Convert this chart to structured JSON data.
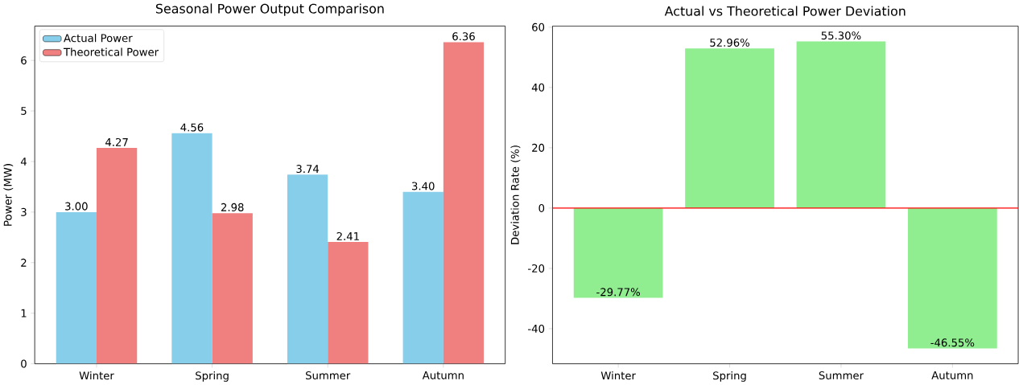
{
  "chart_data": [
    {
      "type": "bar",
      "title": "Seasonal Power Output Comparison",
      "ylabel": "Power (MW)",
      "categories": [
        "Winter",
        "Spring",
        "Summer",
        "Autumn"
      ],
      "series": [
        {
          "name": "Actual Power",
          "color": "#87ceeb",
          "values": [
            3.0,
            4.56,
            3.74,
            3.4
          ],
          "value_labels": [
            "3.00",
            "4.56",
            "3.74",
            "3.40"
          ]
        },
        {
          "name": "Theoretical Power",
          "color": "#f08080",
          "values": [
            4.27,
            2.98,
            2.41,
            6.36
          ],
          "value_labels": [
            "4.27",
            "2.98",
            "2.41",
            "6.36"
          ]
        }
      ],
      "ylim": [
        0,
        6.68
      ],
      "yticks": [
        0,
        1,
        2,
        3,
        4,
        5,
        6
      ],
      "legend": "top left"
    },
    {
      "type": "bar",
      "title": "Actual vs Theoretical Power Deviation",
      "ylabel": "Deviation Rate (%)",
      "categories": [
        "Winter",
        "Spring",
        "Summer",
        "Autumn"
      ],
      "values": [
        -29.77,
        52.96,
        55.3,
        -46.55
      ],
      "color": "#90ee90",
      "value_labels": [
        "-29.77%",
        "52.96%",
        "55.30%",
        "-46.55%"
      ],
      "ylim": [
        -51.64,
        60.39
      ],
      "yticks": [
        -40,
        -20,
        0,
        20,
        40,
        60
      ],
      "ref_lines": [
        {
          "axis": "y",
          "value": 0,
          "color": "#ff0000"
        }
      ]
    }
  ]
}
